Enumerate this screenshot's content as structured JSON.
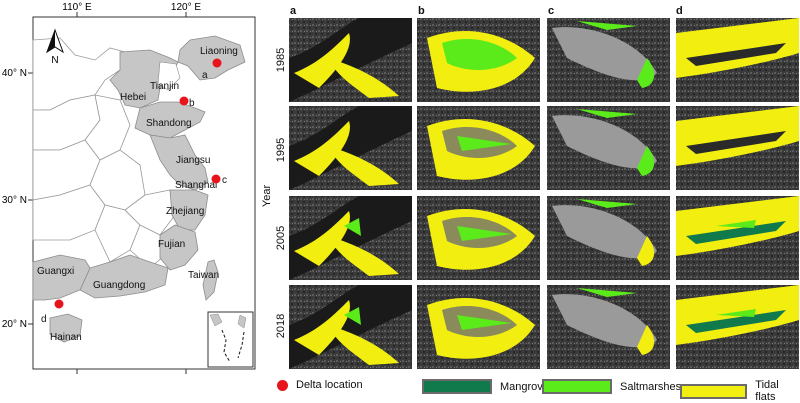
{
  "map": {
    "lon_ticks": [
      "110° E",
      "120° E"
    ],
    "lat_ticks": [
      "40° N",
      "30° N",
      "20° N"
    ],
    "north_label": "N",
    "provinces": [
      "Liaoning",
      "Tianjin",
      "Hebei",
      "Shandong",
      "Jiangsu",
      "Shanghai",
      "Zhejiang",
      "Fujian",
      "Guangxi",
      "Guangdong",
      "Taiwan",
      "Hainan"
    ],
    "sites": [
      {
        "letter": "a"
      },
      {
        "letter": "b"
      },
      {
        "letter": "c"
      },
      {
        "letter": "d"
      }
    ]
  },
  "panels": {
    "columns": [
      "a",
      "b",
      "c",
      "d"
    ],
    "years": [
      "1985",
      "1995",
      "2005",
      "2018"
    ],
    "y_axis_label": "Year"
  },
  "legend": {
    "delta_label": "Delta location",
    "classes": [
      {
        "label": "Mangrove forests",
        "color": "#117A4C"
      },
      {
        "label": "Saltmarshes",
        "color": "#5BEA1A"
      },
      {
        "label": "Tidal flats",
        "color": "#F2EE0F"
      }
    ],
    "delta_color": "#E8141B"
  }
}
